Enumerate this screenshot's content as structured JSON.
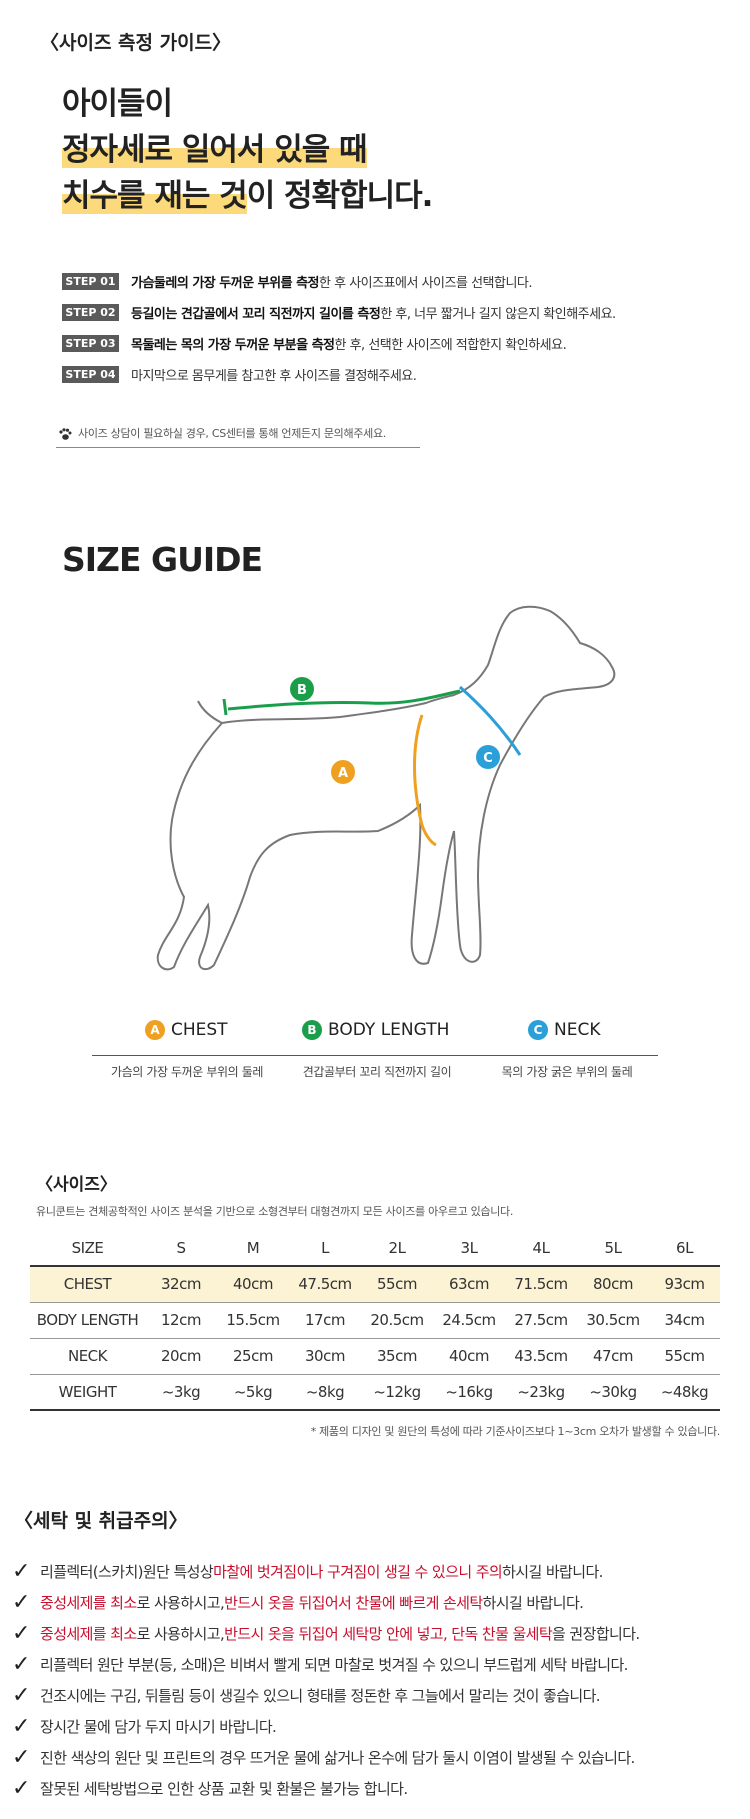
{
  "measure_guide": {
    "title": "〈사이즈 측정 가이드〉",
    "headline": {
      "line1": "아이들이",
      "line2_highlight": "정자세로 일어서 있을 때",
      "line3_highlight": "치수를 재는 것",
      "line3_rest": "이 정확합니다."
    },
    "steps": [
      {
        "badge": "STEP 01",
        "bold": "가슴둘레의 가장 두꺼운 부위를 측정",
        "rest": "한 후 사이즈표에서 사이즈를 선택합니다."
      },
      {
        "badge": "STEP 02",
        "bold": "등길이는 견갑골에서 꼬리 직전까지 길이를 측정",
        "rest": "한 후, 너무 짧거나 길지 않은지 확인해주세요."
      },
      {
        "badge": "STEP 03",
        "bold": "목둘레는 목의 가장 두꺼운 부분을 측정",
        "rest": "한 후, 선택한 사이즈에 적합한지 확인하세요."
      },
      {
        "badge": "STEP 04",
        "bold": "",
        "rest": "마지막으로 몸무게를 참고한 후 사이즈를 결정해주세요."
      }
    ],
    "note": "사이즈 상담이 필요하실 경우, CS센터를 통해 언제든지 문의해주세요.",
    "note_icon": "paw-icon"
  },
  "size_guide": {
    "title": "SIZE GUIDE",
    "legend": [
      {
        "letter": "A",
        "label": "CHEST",
        "desc": "가슴의 가장 두꺼운 부위의 둘레",
        "color": "#f0a020"
      },
      {
        "letter": "B",
        "label": "BODY LENGTH",
        "desc": "견갑골부터 꼬리 직전까지 길이",
        "color": "#1a9e4a"
      },
      {
        "letter": "C",
        "label": "NECK",
        "desc": "목의 가장 굵은 부위의 둘레",
        "color": "#2a9fd8"
      }
    ]
  },
  "size_table": {
    "title": "〈사이즈〉",
    "subtitle": "유니쿤트는 견체공학적인 사이즈 분석을 기반으로 소형견부터 대형견까지 모든 사이즈를 아우르고 있습니다.",
    "header": [
      "SIZE",
      "S",
      "M",
      "L",
      "2L",
      "3L",
      "4L",
      "5L",
      "6L"
    ],
    "rows": [
      [
        "CHEST",
        "32cm",
        "40cm",
        "47.5cm",
        "55cm",
        "63cm",
        "71.5cm",
        "80cm",
        "93cm"
      ],
      [
        "BODY LENGTH",
        "12cm",
        "15.5cm",
        "17cm",
        "20.5cm",
        "24.5cm",
        "27.5cm",
        "30.5cm",
        "34cm"
      ],
      [
        "NECK",
        "20cm",
        "25cm",
        "30cm",
        "35cm",
        "40cm",
        "43.5cm",
        "47cm",
        "55cm"
      ],
      [
        "WEIGHT",
        "~3kg",
        "~5kg",
        "~8kg",
        "~12kg",
        "~16kg",
        "~23kg",
        "~30kg",
        "~48kg"
      ]
    ],
    "footnote": "* 제품의 디자인 및 원단의 특성에 따라 기준사이즈보다 1~3cm 오차가 발생할 수 있습니다."
  },
  "care": {
    "title": "〈세탁 및 취급주의〉",
    "items": [
      [
        {
          "t": "리플렉터(스카치)원단 특성상 ",
          "red": false
        },
        {
          "t": "마찰에 벗겨짐이나 구겨짐이 생길 수 있으니 주의",
          "red": true
        },
        {
          "t": "하시길 바랍니다.",
          "red": false
        }
      ],
      [
        {
          "t": "중성세제를 최소",
          "red": true
        },
        {
          "t": "로 사용하시고, ",
          "red": false
        },
        {
          "t": "반드시 옷을 뒤집어서 찬물에 빠르게 손세탁",
          "red": true
        },
        {
          "t": " 하시길 바랍니다.",
          "red": false
        }
      ],
      [
        {
          "t": "중성세제를 최소",
          "red": true
        },
        {
          "t": "로 사용하시고, ",
          "red": false
        },
        {
          "t": "반드시 옷을 뒤집어 세탁망 안에 넣고, 단독 찬물 울세탁",
          "red": true
        },
        {
          "t": "을 권장합니다.",
          "red": false
        }
      ],
      [
        {
          "t": "리플렉터 원단 부분(등, 소매)은 비벼서 빨게 되면 마찰로 벗겨질 수 있으니 부드럽게 세탁 바랍니다.",
          "red": false
        }
      ],
      [
        {
          "t": "건조시에는 구김, 뒤틀림 등이 생길수 있으니 형태를 정돈한 후 그늘에서 말리는 것이 좋습니다.",
          "red": false
        }
      ],
      [
        {
          "t": "장시간 물에 담가 두지 마시기 바랍니다.",
          "red": false
        }
      ],
      [
        {
          "t": "진한 색상의 원단 및 프린트의 경우 뜨거운 물에 삶거나 온수에 담가 둘시 이염이 발생될 수 있습니다.",
          "red": false
        }
      ],
      [
        {
          "t": "잘못된 세탁방법으로 인한 상품 교환 및 환불은 불가능 합니다.",
          "red": false
        }
      ]
    ]
  }
}
